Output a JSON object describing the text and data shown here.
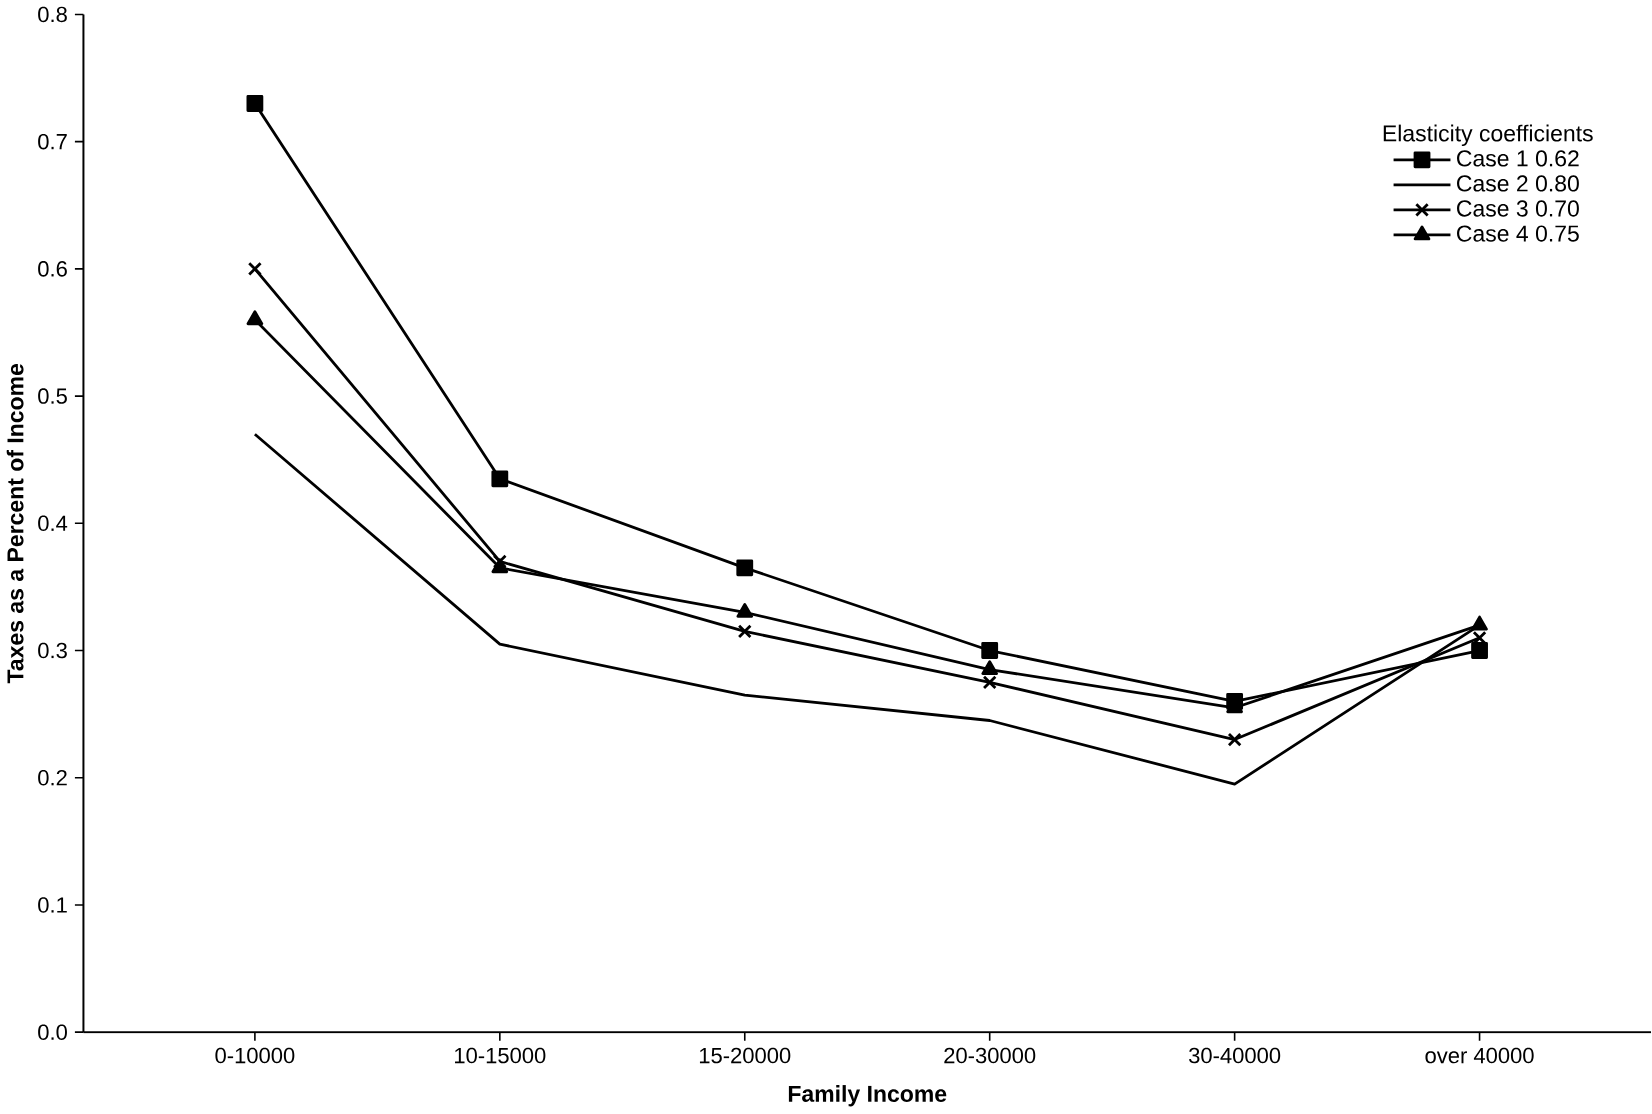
{
  "chart_data": {
    "type": "line",
    "xlabel": "Family Income",
    "ylabel": "Taxes as a Percent of Income",
    "legend_title": "Elasticity coefficients",
    "legend": "top right",
    "categories": [
      "0-10000",
      "10-15000",
      "15-20000",
      "20-30000",
      "30-40000",
      "over 40000"
    ],
    "ylim": [
      0,
      0.8
    ],
    "yticks": [
      {
        "value": 0,
        "label": "0.0"
      },
      0.1,
      0.2,
      0.3,
      0.4,
      0.5,
      0.6,
      0.7,
      0.8
    ],
    "series": [
      {
        "name": "Case 1 0.62",
        "color": "#000000",
        "marker": "square",
        "values": [
          0.73,
          0.435,
          0.365,
          0.3,
          0.26,
          0.3
        ]
      },
      {
        "name": "Case 2 0.80",
        "color": "#000000",
        "marker": "none",
        "values": [
          0.47,
          0.305,
          0.265,
          0.245,
          0.195,
          0.32
        ]
      },
      {
        "name": "Case 3 0.70",
        "color": "#000000",
        "marker": "cross",
        "values": [
          0.6,
          0.37,
          0.315,
          0.275,
          0.23,
          0.31
        ]
      },
      {
        "name": "Case 4 0.75",
        "color": "#000000",
        "marker": "triangle",
        "values": [
          0.56,
          0.365,
          0.33,
          0.285,
          0.255,
          0.32
        ]
      }
    ]
  }
}
